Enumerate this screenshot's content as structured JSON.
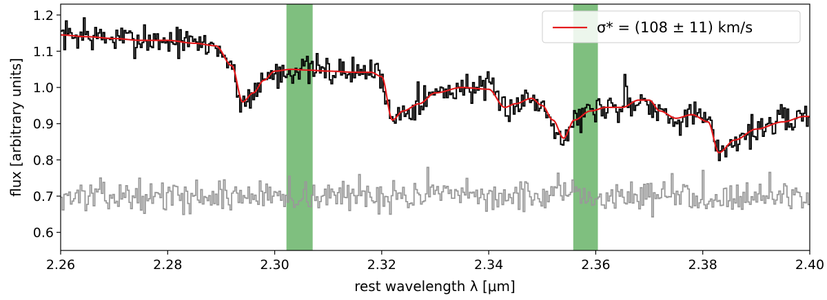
{
  "chart_data": {
    "type": "line",
    "title": "",
    "xlabel": "rest wavelength λ [μm]",
    "ylabel": "flux [arbitrary units]",
    "xlim": [
      2.26,
      2.4
    ],
    "ylim": [
      0.55,
      1.23
    ],
    "x_ticks": [
      2.26,
      2.28,
      2.3,
      2.32,
      2.34,
      2.36,
      2.38,
      2.4
    ],
    "x_tick_labels": [
      "2.26",
      "2.28",
      "2.30",
      "2.32",
      "2.34",
      "2.36",
      "2.38",
      "2.40"
    ],
    "y_ticks": [
      0.6,
      0.7,
      0.8,
      0.9,
      1.0,
      1.1,
      1.2
    ],
    "y_tick_labels": [
      "0.6",
      "0.7",
      "0.8",
      "0.9",
      "1.0",
      "1.1",
      "1.2"
    ],
    "grid": false,
    "legend_position": "top-right",
    "shaded_regions": [
      {
        "x0": 2.3022,
        "x1": 2.3071,
        "color": "#7fbf7f"
      },
      {
        "x0": 2.3558,
        "x1": 2.3604,
        "color": "#7fbf7f"
      }
    ],
    "model_knots": {
      "x": [
        2.26,
        2.265,
        2.27,
        2.275,
        2.28,
        2.285,
        2.289,
        2.292,
        2.294,
        2.296,
        2.298,
        2.3,
        2.303,
        2.306,
        2.31,
        2.315,
        2.318,
        2.32,
        2.322,
        2.324,
        2.327,
        2.33,
        2.335,
        2.34,
        2.343,
        2.345,
        2.348,
        2.35,
        2.352,
        2.354,
        2.356,
        2.359,
        2.362,
        2.365,
        2.368,
        2.37,
        2.372,
        2.375,
        2.378,
        2.381,
        2.383,
        2.386,
        2.39,
        2.395,
        2.399
      ],
      "y": [
        1.145,
        1.14,
        1.135,
        1.13,
        1.13,
        1.122,
        1.115,
        1.06,
        0.96,
        0.985,
        1.02,
        1.045,
        1.05,
        1.048,
        1.045,
        1.042,
        1.042,
        1.03,
        0.91,
        0.935,
        0.955,
        0.985,
        1.0,
        0.995,
        0.945,
        0.955,
        0.97,
        0.95,
        0.91,
        0.86,
        0.91,
        0.935,
        0.945,
        0.945,
        0.965,
        0.965,
        0.935,
        0.915,
        0.925,
        0.905,
        0.82,
        0.855,
        0.885,
        0.905,
        0.92
      ]
    },
    "series": [
      {
        "name": "",
        "role": "observed spectrum",
        "color": "#000000",
        "style": "steps",
        "seed": 7,
        "noise": 0.018,
        "spike_prob": 0.04,
        "offset_from_model": 0.0
      },
      {
        "name": "σ* = (108 ± 11) km/s",
        "role": "model fit",
        "color": "#e41a1c",
        "style": "line"
      },
      {
        "name": "",
        "role": "residuals",
        "color": "#999999",
        "style": "steps",
        "seed": 13,
        "noise": 0.018,
        "spike_prob": 0.04,
        "baseline": 0.7
      }
    ],
    "legend_entries": [
      {
        "label": "σ* = (108 ± 11) km/s",
        "color": "#e41a1c"
      }
    ]
  }
}
